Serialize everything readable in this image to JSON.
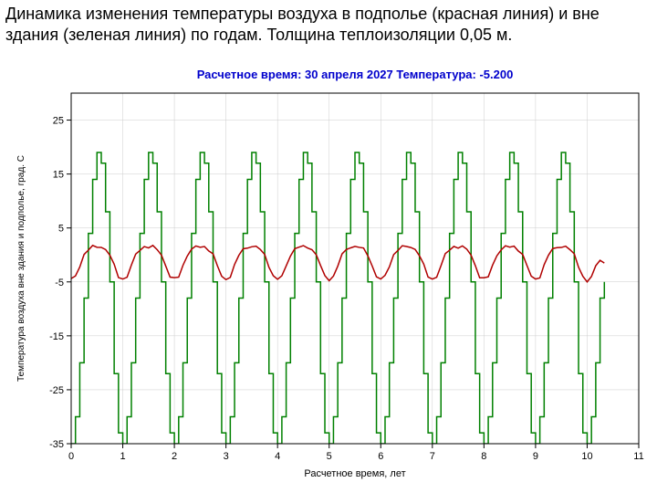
{
  "caption": "Динамика изменения температуры воздуха в подполье (красная линия) и вне здания (зеленая линия) по годам. Толщина теплоизоляции 0,05 м.",
  "chart": {
    "type": "line",
    "title": "Расчетное время: 30 апреля 2027 Температура: -5.200",
    "title_color": "#0000cc",
    "title_fontsize": 13,
    "title_fontweight": "bold",
    "background_color": "#ffffff",
    "border_color": "#000000",
    "grid_color": "#cccccc",
    "xlabel": "Расчетное время, лет",
    "ylabel": "Температура воздуха вне здания и подполье, град. С",
    "label_fontsize": 11,
    "tick_fontsize": 11,
    "xlim": [
      0,
      11
    ],
    "ylim": [
      -35,
      30
    ],
    "xtick_step": 1,
    "ytick_step": 10,
    "line_width_green": 1.5,
    "line_width_red": 1.5,
    "series": [
      {
        "name": "outside",
        "color": "#008000",
        "step": true,
        "monthly_cycle": [
          -35,
          -30,
          -20,
          -8,
          4,
          14,
          19,
          17,
          8,
          -5,
          -22,
          -33
        ],
        "cycles": 10,
        "tail": [
          -35,
          -30,
          -20,
          -8,
          -5
        ]
      },
      {
        "name": "underfloor",
        "color": "#b00000",
        "step": false,
        "monthly_cycle": [
          -4.5,
          -4.0,
          -2.0,
          0.0,
          1.0,
          1.5,
          1.5,
          1.5,
          1.0,
          0.0,
          -2.0,
          -4.0
        ],
        "cycles": 10,
        "tail": [
          -5.0,
          -4.0,
          -2.0,
          -1.0,
          -1.5
        ],
        "noise_amp": 0.3
      }
    ]
  }
}
